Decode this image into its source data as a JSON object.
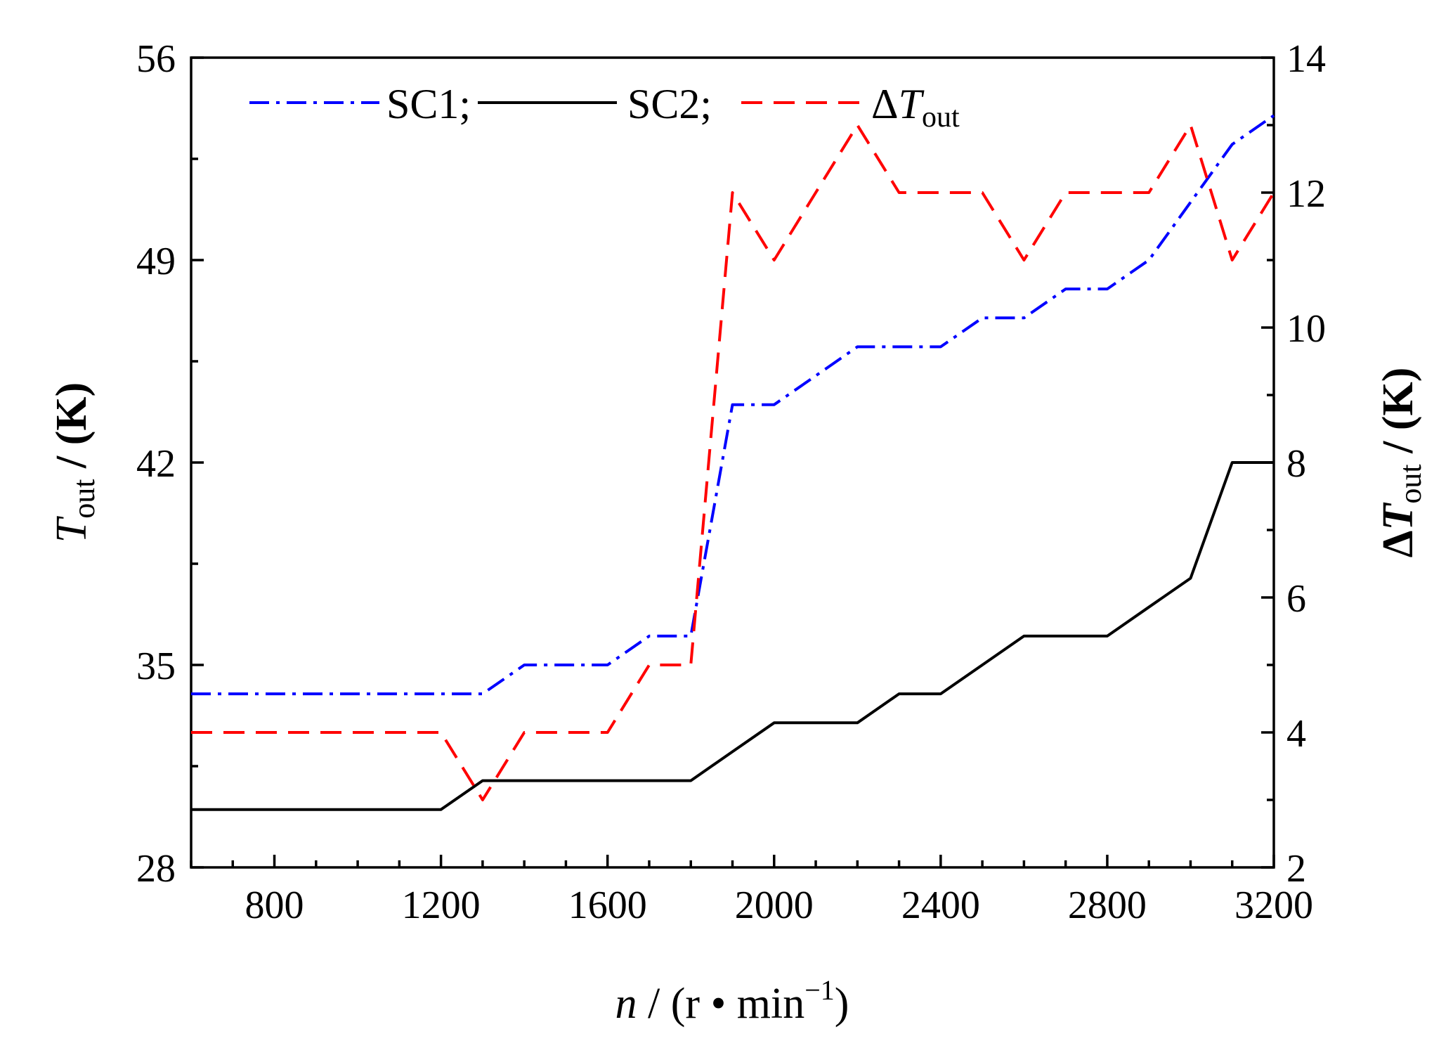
{
  "chart_data": {
    "type": "line",
    "title": "",
    "x": [
      600,
      700,
      800,
      900,
      1000,
      1100,
      1200,
      1300,
      1400,
      1500,
      1600,
      1700,
      1800,
      1900,
      2000,
      2100,
      2200,
      2300,
      2400,
      2500,
      2600,
      2700,
      2800,
      2900,
      3000,
      3100,
      3200
    ],
    "xlim": [
      600,
      3200
    ],
    "xticks": [
      800,
      1200,
      1600,
      2000,
      2400,
      2800,
      3200
    ],
    "xlabel": {
      "main": "n",
      "unit_open": " / (r • min",
      "sup": "−1",
      "unit_close": ")"
    },
    "ylim_left": [
      28,
      56
    ],
    "yticks_left": [
      28,
      35,
      42,
      49,
      56
    ],
    "ylabel_left": {
      "main": "T",
      "sub": "out",
      "unit": " / (K)"
    },
    "ylim_right": [
      2,
      14
    ],
    "yticks_right": [
      2,
      4,
      6,
      8,
      10,
      12,
      14
    ],
    "ylabel_right": {
      "main": "ΔT",
      "sub": "out",
      "unit": " / (K)"
    },
    "series": [
      {
        "name": "SC1",
        "legend_label": "SC1;",
        "axis": "left",
        "color": "#0000ff",
        "style": "dashdot",
        "values": [
          34,
          34,
          34,
          34,
          34,
          34,
          34,
          34,
          35,
          35,
          35,
          36,
          36,
          44,
          44,
          45,
          46,
          46,
          46,
          47,
          47,
          48,
          48,
          49,
          51,
          53,
          54
        ]
      },
      {
        "name": "SC2",
        "legend_label": "SC2;",
        "axis": "left",
        "color": "#000000",
        "style": "solid",
        "values": [
          30,
          30,
          30,
          30,
          30,
          30,
          30,
          31,
          31,
          31,
          31,
          31,
          31,
          32,
          33,
          33,
          33,
          34,
          34,
          35,
          36,
          36,
          36,
          37,
          38,
          42,
          42
        ]
      },
      {
        "name": "ΔTout",
        "legend_label": {
          "main": "ΔT",
          "sub": "out"
        },
        "axis": "right",
        "color": "#ff0000",
        "style": "dashed",
        "values": [
          4,
          4,
          4,
          4,
          4,
          4,
          4,
          3,
          4,
          4,
          4,
          5,
          5,
          12,
          11,
          12,
          13,
          12,
          12,
          12,
          11,
          12,
          12,
          12,
          13,
          11,
          12
        ]
      }
    ],
    "legend_position": "top-left",
    "grid": false
  }
}
